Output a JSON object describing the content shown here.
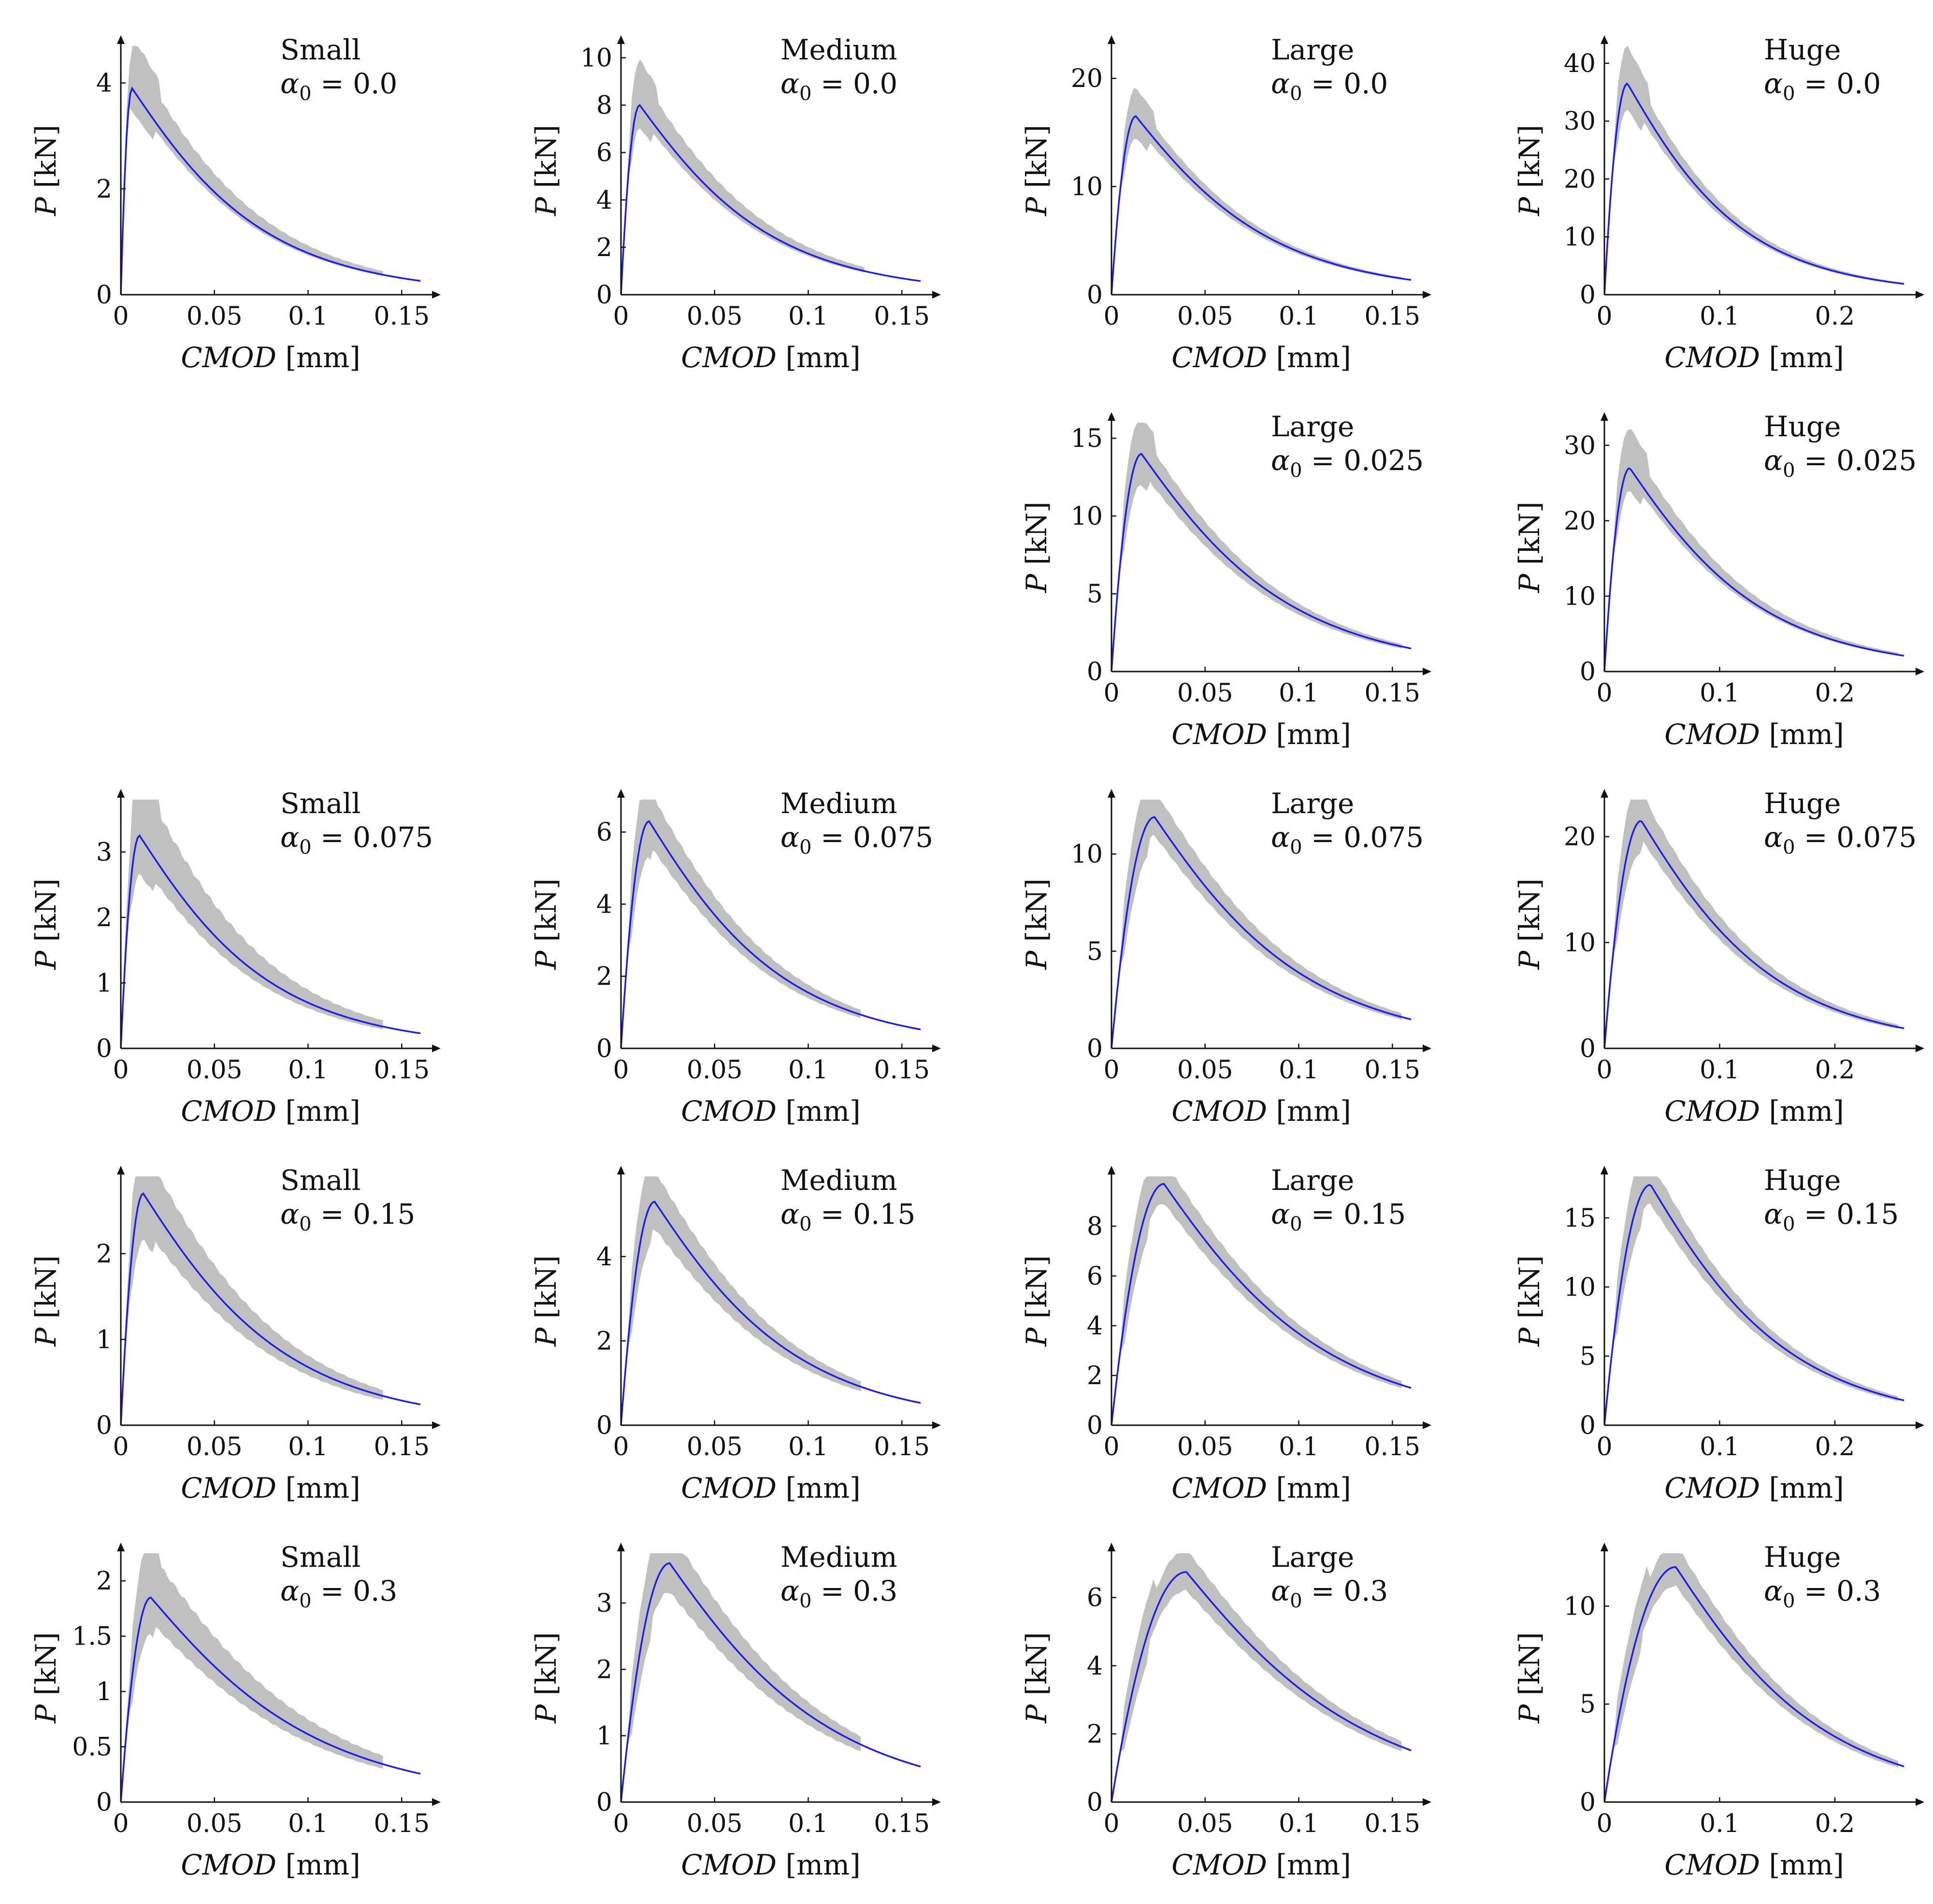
{
  "figure": {
    "description_free": true
  },
  "colors": {
    "envelope": "#c0c0c0",
    "model_line": "#1c1cf2",
    "axis": "#111111"
  },
  "chart_data": [
    {
      "id": "small-0",
      "type": "line",
      "row": 0,
      "col": 0,
      "size_label": "Small",
      "alpha_label": "α",
      "alpha_sub": "0",
      "alpha_eq": " = 0.0",
      "xlabel_var": "CMOD",
      "xlabel_unit": " [mm]",
      "ylabel_var": "P",
      "ylabel_unit": " [kN]",
      "xlim": [
        0,
        0.16
      ],
      "ylim": [
        0,
        4.7
      ],
      "xticks": [
        0,
        0.05,
        0.1,
        0.15
      ],
      "xtick_labels": [
        "0",
        "0.05",
        "0.1",
        "0.15"
      ],
      "yticks": [
        0,
        2,
        4
      ],
      "ytick_labels": [
        "0",
        "2",
        "4"
      ],
      "peak_x": 0.006,
      "peak_y": 3.9,
      "tail_y": 0.25,
      "data_xmax": 0.14,
      "band_hi": 0.18,
      "band_lo": 0.05
    },
    {
      "id": "medium-0",
      "type": "line",
      "row": 0,
      "col": 1,
      "size_label": "Medium",
      "alpha_label": "α",
      "alpha_sub": "0",
      "alpha_eq": " = 0.0",
      "xlabel_var": "CMOD",
      "xlabel_unit": " [mm]",
      "ylabel_var": "P",
      "ylabel_unit": " [kN]",
      "xlim": [
        0,
        0.16
      ],
      "ylim": [
        0,
        10.5
      ],
      "xticks": [
        0,
        0.05,
        0.1,
        0.15
      ],
      "xtick_labels": [
        "0",
        "0.05",
        "0.1",
        "0.15"
      ],
      "yticks": [
        0,
        2,
        4,
        6,
        8,
        10
      ],
      "ytick_labels": [
        "0",
        "2",
        "4",
        "6",
        "8",
        "10"
      ],
      "peak_x": 0.01,
      "peak_y": 8.0,
      "tail_y": 0.55,
      "data_xmax": 0.13,
      "band_hi": 0.16,
      "band_lo": 0.06
    },
    {
      "id": "large-0",
      "type": "line",
      "row": 0,
      "col": 2,
      "size_label": "Large",
      "alpha_label": "α",
      "alpha_sub": "0",
      "alpha_eq": " = 0.0",
      "xlabel_var": "CMOD",
      "xlabel_unit": " [mm]",
      "ylabel_var": "P",
      "ylabel_unit": " [kN]",
      "xlim": [
        0,
        0.16
      ],
      "ylim": [
        0,
        23
      ],
      "xticks": [
        0,
        0.05,
        0.1,
        0.15
      ],
      "xtick_labels": [
        "0",
        "0.05",
        "0.1",
        "0.15"
      ],
      "yticks": [
        0,
        10,
        20
      ],
      "ytick_labels": [
        "0",
        "10",
        "20"
      ],
      "peak_x": 0.013,
      "peak_y": 16.5,
      "tail_y": 1.3,
      "data_xmax": 0.155,
      "band_hi": 0.08,
      "band_lo": 0.06
    },
    {
      "id": "huge-0",
      "type": "line",
      "row": 0,
      "col": 3,
      "size_label": "Huge",
      "alpha_label": "α",
      "alpha_sub": "0",
      "alpha_eq": " = 0.0",
      "xlabel_var": "CMOD",
      "xlabel_unit": " [mm]",
      "ylabel_var": "P",
      "ylabel_unit": " [kN]",
      "xlim": [
        0,
        0.26
      ],
      "ylim": [
        0,
        43
      ],
      "xticks": [
        0,
        0.1,
        0.2
      ],
      "xtick_labels": [
        "0",
        "0.1",
        "0.2"
      ],
      "yticks": [
        0,
        10,
        20,
        30,
        40
      ],
      "ytick_labels": [
        "0",
        "10",
        "20",
        "30",
        "40"
      ],
      "peak_x": 0.02,
      "peak_y": 36.5,
      "tail_y": 1.8,
      "data_xmax": 0.26,
      "band_hi": 0.1,
      "band_lo": 0.06
    },
    {
      "id": "large-0025",
      "type": "line",
      "row": 1,
      "col": 2,
      "size_label": "Large",
      "alpha_label": "α",
      "alpha_sub": "0",
      "alpha_eq": " = 0.025",
      "xlabel_var": "CMOD",
      "xlabel_unit": " [mm]",
      "ylabel_var": "P",
      "ylabel_unit": " [kN]",
      "xlim": [
        0,
        0.16
      ],
      "ylim": [
        0,
        16
      ],
      "xticks": [
        0,
        0.05,
        0.1,
        0.15
      ],
      "xtick_labels": [
        "0",
        "0.05",
        "0.1",
        "0.15"
      ],
      "yticks": [
        0,
        5,
        10,
        15
      ],
      "ytick_labels": [
        "0",
        "5",
        "10",
        "15"
      ],
      "peak_x": 0.016,
      "peak_y": 14.0,
      "tail_y": 1.4,
      "data_xmax": 0.155,
      "band_hi": 0.1,
      "band_lo": 0.08
    },
    {
      "id": "huge-0025",
      "type": "line",
      "row": 1,
      "col": 3,
      "size_label": "Huge",
      "alpha_label": "α",
      "alpha_sub": "0",
      "alpha_eq": " = 0.025",
      "xlabel_var": "CMOD",
      "xlabel_unit": " [mm]",
      "ylabel_var": "P",
      "ylabel_unit": " [kN]",
      "xlim": [
        0,
        0.26
      ],
      "ylim": [
        0,
        33
      ],
      "xticks": [
        0,
        0.1,
        0.2
      ],
      "xtick_labels": [
        "0",
        "0.1",
        "0.2"
      ],
      "yticks": [
        0,
        10,
        20,
        30
      ],
      "ytick_labels": [
        "0",
        "10",
        "20",
        "30"
      ],
      "peak_x": 0.022,
      "peak_y": 27.0,
      "tail_y": 2.0,
      "data_xmax": 0.255,
      "band_hi": 0.12,
      "band_lo": 0.05
    },
    {
      "id": "small-0075",
      "type": "line",
      "row": 2,
      "col": 0,
      "size_label": "Small",
      "alpha_label": "α",
      "alpha_sub": "0",
      "alpha_eq": " = 0.075",
      "xlabel_var": "CMOD",
      "xlabel_unit": " [mm]",
      "ylabel_var": "P",
      "ylabel_unit": " [kN]",
      "xlim": [
        0,
        0.16
      ],
      "ylim": [
        0,
        3.8
      ],
      "xticks": [
        0,
        0.05,
        0.1,
        0.15
      ],
      "xtick_labels": [
        "0",
        "0.05",
        "0.1",
        "0.15"
      ],
      "yticks": [
        0,
        1,
        2,
        3
      ],
      "ytick_labels": [
        "0",
        "1",
        "2",
        "3"
      ],
      "peak_x": 0.01,
      "peak_y": 3.25,
      "tail_y": 0.22,
      "data_xmax": 0.14,
      "band_hi": 0.28,
      "band_lo": 0.12
    },
    {
      "id": "medium-0075",
      "type": "line",
      "row": 2,
      "col": 1,
      "size_label": "Medium",
      "alpha_label": "α",
      "alpha_sub": "0",
      "alpha_eq": " = 0.075",
      "xlabel_var": "CMOD",
      "xlabel_unit": " [mm]",
      "ylabel_var": "P",
      "ylabel_unit": " [kN]",
      "xlim": [
        0,
        0.16
      ],
      "ylim": [
        0,
        6.9
      ],
      "xticks": [
        0,
        0.05,
        0.1,
        0.15
      ],
      "xtick_labels": [
        "0",
        "0.05",
        "0.1",
        "0.15"
      ],
      "yticks": [
        0,
        2,
        4,
        6
      ],
      "ytick_labels": [
        "0",
        "2",
        "4",
        "6"
      ],
      "peak_x": 0.015,
      "peak_y": 6.3,
      "tail_y": 0.5,
      "data_xmax": 0.128,
      "band_hi": 0.14,
      "band_lo": 0.1
    },
    {
      "id": "large-0075",
      "type": "line",
      "row": 2,
      "col": 2,
      "size_label": "Large",
      "alpha_label": "α",
      "alpha_sub": "0",
      "alpha_eq": " = 0.075",
      "xlabel_var": "CMOD",
      "xlabel_unit": " [mm]",
      "ylabel_var": "P",
      "ylabel_unit": " [kN]",
      "xlim": [
        0,
        0.16
      ],
      "ylim": [
        0,
        12.8
      ],
      "xticks": [
        0,
        0.05,
        0.1,
        0.15
      ],
      "xtick_labels": [
        "0",
        "0.05",
        "0.1",
        "0.15"
      ],
      "yticks": [
        0,
        5,
        10
      ],
      "ytick_labels": [
        "0",
        "5",
        "10"
      ],
      "peak_x": 0.023,
      "peak_y": 11.9,
      "tail_y": 1.4,
      "data_xmax": 0.155,
      "band_hi": 0.12,
      "band_lo": 0.08
    },
    {
      "id": "huge-0075",
      "type": "line",
      "row": 2,
      "col": 3,
      "size_label": "Huge",
      "alpha_label": "α",
      "alpha_sub": "0",
      "alpha_eq": " = 0.075",
      "xlabel_var": "CMOD",
      "xlabel_unit": " [mm]",
      "ylabel_var": "P",
      "ylabel_unit": " [kN]",
      "xlim": [
        0,
        0.26
      ],
      "ylim": [
        0,
        23.5
      ],
      "xticks": [
        0,
        0.1,
        0.2
      ],
      "xtick_labels": [
        "0",
        "0.1",
        "0.2"
      ],
      "yticks": [
        0,
        10,
        20
      ],
      "ytick_labels": [
        "0",
        "10",
        "20"
      ],
      "peak_x": 0.032,
      "peak_y": 21.5,
      "tail_y": 1.8,
      "data_xmax": 0.255,
      "band_hi": 0.12,
      "band_lo": 0.08
    },
    {
      "id": "small-015",
      "type": "line",
      "row": 3,
      "col": 0,
      "size_label": "Small",
      "alpha_label": "α",
      "alpha_sub": "0",
      "alpha_eq": " = 0.15",
      "xlabel_var": "CMOD",
      "xlabel_unit": " [mm]",
      "ylabel_var": "P",
      "ylabel_unit": " [kN]",
      "xlim": [
        0,
        0.16
      ],
      "ylim": [
        0,
        2.9
      ],
      "xticks": [
        0,
        0.05,
        0.1,
        0.15
      ],
      "xtick_labels": [
        "0",
        "0.05",
        "0.1",
        "0.15"
      ],
      "yticks": [
        0,
        1,
        2
      ],
      "ytick_labels": [
        "0",
        "1",
        "2"
      ],
      "peak_x": 0.012,
      "peak_y": 2.7,
      "tail_y": 0.23,
      "data_xmax": 0.14,
      "band_hi": 0.2,
      "band_lo": 0.14
    },
    {
      "id": "medium-015",
      "type": "line",
      "row": 3,
      "col": 1,
      "size_label": "Medium",
      "alpha_label": "α",
      "alpha_sub": "0",
      "alpha_eq": " = 0.15",
      "xlabel_var": "CMOD",
      "xlabel_unit": " [mm]",
      "ylabel_var": "P",
      "ylabel_unit": " [kN]",
      "xlim": [
        0,
        0.16
      ],
      "ylim": [
        0,
        5.9
      ],
      "xticks": [
        0,
        0.05,
        0.1,
        0.15
      ],
      "xtick_labels": [
        "0",
        "0.05",
        "0.1",
        "0.15"
      ],
      "yticks": [
        0,
        2,
        4
      ],
      "ytick_labels": [
        "0",
        "2",
        "4"
      ],
      "peak_x": 0.018,
      "peak_y": 5.3,
      "tail_y": 0.5,
      "data_xmax": 0.128,
      "band_hi": 0.14,
      "band_lo": 0.12
    },
    {
      "id": "large-015",
      "type": "line",
      "row": 3,
      "col": 2,
      "size_label": "Large",
      "alpha_label": "α",
      "alpha_sub": "0",
      "alpha_eq": " = 0.15",
      "xlabel_var": "CMOD",
      "xlabel_unit": " [mm]",
      "ylabel_var": "P",
      "ylabel_unit": " [kN]",
      "xlim": [
        0,
        0.16
      ],
      "ylim": [
        0,
        10
      ],
      "xticks": [
        0,
        0.05,
        0.1,
        0.15
      ],
      "xtick_labels": [
        "0",
        "0.05",
        "0.1",
        "0.15"
      ],
      "yticks": [
        0,
        2,
        4,
        6,
        8
      ],
      "ytick_labels": [
        "0",
        "2",
        "4",
        "6",
        "8"
      ],
      "peak_x": 0.028,
      "peak_y": 9.7,
      "tail_y": 1.4,
      "data_xmax": 0.155,
      "band_hi": 0.1,
      "band_lo": 0.08
    },
    {
      "id": "huge-015",
      "type": "line",
      "row": 3,
      "col": 3,
      "size_label": "Huge",
      "alpha_label": "α",
      "alpha_sub": "0",
      "alpha_eq": " = 0.15",
      "xlabel_var": "CMOD",
      "xlabel_unit": " [mm]",
      "ylabel_var": "P",
      "ylabel_unit": " [kN]",
      "xlim": [
        0,
        0.26
      ],
      "ylim": [
        0,
        18
      ],
      "xticks": [
        0,
        0.1,
        0.2
      ],
      "xtick_labels": [
        "0",
        "0.1",
        "0.2"
      ],
      "yticks": [
        0,
        5,
        10,
        15
      ],
      "ytick_labels": [
        "0",
        "5",
        "10",
        "15"
      ],
      "peak_x": 0.04,
      "peak_y": 17.4,
      "tail_y": 1.7,
      "data_xmax": 0.255,
      "band_hi": 0.1,
      "band_lo": 0.08
    },
    {
      "id": "small-03",
      "type": "line",
      "row": 4,
      "col": 0,
      "size_label": "Small",
      "alpha_label": "α",
      "alpha_sub": "0",
      "alpha_eq": " = 0.3",
      "xlabel_var": "CMOD",
      "xlabel_unit": " [mm]",
      "ylabel_var": "P",
      "ylabel_unit": " [kN]",
      "xlim": [
        0,
        0.16
      ],
      "ylim": [
        0,
        2.25
      ],
      "xticks": [
        0,
        0.05,
        0.1,
        0.15
      ],
      "xtick_labels": [
        "0",
        "0.05",
        "0.1",
        "0.15"
      ],
      "yticks": [
        0,
        0.5,
        1,
        1.5,
        2
      ],
      "ytick_labels": [
        "0",
        "0.5",
        "1",
        "1.5",
        "2"
      ],
      "peak_x": 0.016,
      "peak_y": 1.85,
      "tail_y": 0.24,
      "data_xmax": 0.14,
      "band_hi": 0.22,
      "band_lo": 0.12
    },
    {
      "id": "medium-03",
      "type": "line",
      "row": 4,
      "col": 1,
      "size_label": "Medium",
      "alpha_label": "α",
      "alpha_sub": "0",
      "alpha_eq": " = 0.3",
      "xlabel_var": "CMOD",
      "xlabel_unit": " [mm]",
      "ylabel_var": "P",
      "ylabel_unit": " [kN]",
      "xlim": [
        0,
        0.16
      ],
      "ylim": [
        0,
        3.75
      ],
      "xticks": [
        0,
        0.05,
        0.1,
        0.15
      ],
      "xtick_labels": [
        "0",
        "0.05",
        "0.1",
        "0.15"
      ],
      "yticks": [
        0,
        1,
        2,
        3
      ],
      "ytick_labels": [
        "0",
        "1",
        "2",
        "3"
      ],
      "peak_x": 0.026,
      "peak_y": 3.6,
      "tail_y": 0.5,
      "data_xmax": 0.128,
      "band_hi": 0.14,
      "band_lo": 0.12
    },
    {
      "id": "large-03",
      "type": "line",
      "row": 4,
      "col": 2,
      "size_label": "Large",
      "alpha_label": "α",
      "alpha_sub": "0",
      "alpha_eq": " = 0.3",
      "xlabel_var": "CMOD",
      "xlabel_unit": " [mm]",
      "ylabel_var": "P",
      "ylabel_unit": " [kN]",
      "xlim": [
        0,
        0.16
      ],
      "ylim": [
        0,
        7.3
      ],
      "xticks": [
        0,
        0.05,
        0.1,
        0.15
      ],
      "xtick_labels": [
        "0",
        "0.05",
        "0.1",
        "0.15"
      ],
      "yticks": [
        0,
        2,
        4,
        6
      ],
      "ytick_labels": [
        "0",
        "2",
        "4",
        "6"
      ],
      "peak_x": 0.04,
      "peak_y": 6.75,
      "tail_y": 1.4,
      "data_xmax": 0.155,
      "band_hi": 0.1,
      "band_lo": 0.08
    },
    {
      "id": "huge-03",
      "type": "line",
      "row": 4,
      "col": 3,
      "size_label": "Huge",
      "alpha_label": "α",
      "alpha_sub": "0",
      "alpha_eq": " = 0.3",
      "xlabel_var": "CMOD",
      "xlabel_unit": " [mm]",
      "ylabel_var": "P",
      "ylabel_unit": " [kN]",
      "xlim": [
        0,
        0.26
      ],
      "ylim": [
        0,
        12.7
      ],
      "xticks": [
        0,
        0.1,
        0.2
      ],
      "xtick_labels": [
        "0",
        "0.1",
        "0.2"
      ],
      "yticks": [
        0,
        5,
        10
      ],
      "ytick_labels": [
        "0",
        "5",
        "10"
      ],
      "peak_x": 0.062,
      "peak_y": 12.0,
      "tail_y": 1.7,
      "data_xmax": 0.255,
      "band_hi": 0.1,
      "band_lo": 0.08
    }
  ]
}
